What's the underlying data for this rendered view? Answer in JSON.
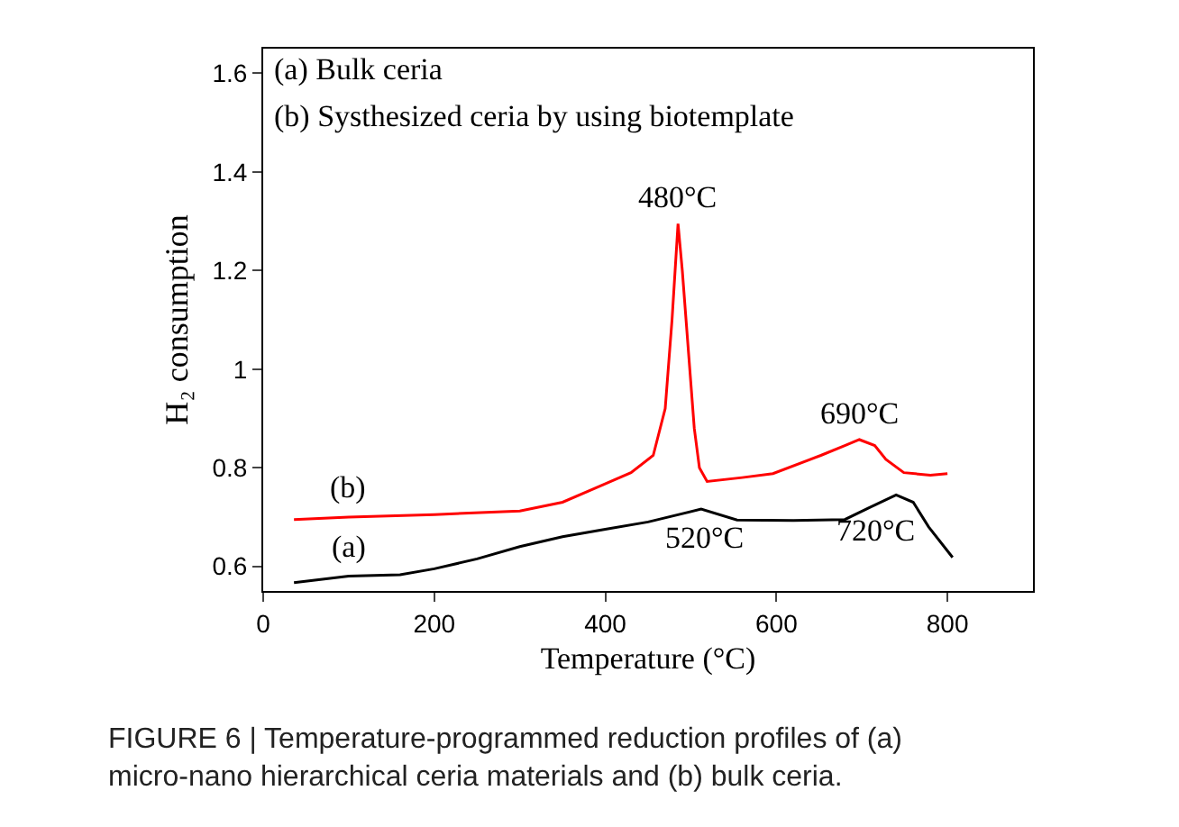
{
  "chart_data": {
    "type": "line",
    "xlabel": "Temperature (°C)",
    "ylabel": "H₂ consumption",
    "xlim": [
      0,
      900
    ],
    "ylim": [
      0.55,
      1.65
    ],
    "xticks": [
      0,
      200,
      400,
      600,
      800
    ],
    "yticks": [
      0.6,
      0.8,
      1.0,
      1.2,
      1.4,
      1.6
    ],
    "grid": false,
    "legend": false,
    "marker": "none",
    "line_style": "solid",
    "series": [
      {
        "name": "(a)",
        "color": "#000000",
        "x": [
          36,
          100,
          160,
          200,
          250,
          300,
          350,
          400,
          450,
          512,
          554,
          620,
          680,
          710,
          740,
          760,
          778,
          806
        ],
        "values": [
          0.567,
          0.58,
          0.583,
          0.595,
          0.615,
          0.64,
          0.66,
          0.675,
          0.69,
          0.716,
          0.694,
          0.693,
          0.695,
          0.72,
          0.745,
          0.73,
          0.68,
          0.618
        ]
      },
      {
        "name": "(b)",
        "color": "#ff0000",
        "x": [
          36,
          100,
          200,
          300,
          350,
          390,
          430,
          456,
          470,
          478,
          485,
          490,
          498,
          504,
          510,
          519,
          560,
          596,
          652,
          680,
          697,
          715,
          728,
          749,
          780,
          800
        ],
        "values": [
          0.695,
          0.7,
          0.705,
          0.712,
          0.73,
          0.76,
          0.79,
          0.825,
          0.92,
          1.1,
          1.295,
          1.2,
          1.017,
          0.88,
          0.8,
          0.772,
          0.78,
          0.788,
          0.825,
          0.845,
          0.857,
          0.845,
          0.817,
          0.79,
          0.785,
          0.788
        ]
      }
    ],
    "annotations": [
      "(a) Bulk ceria",
      "(b) Systhesized ceria by using biotemplate",
      {
        "text": "480°C",
        "x": 485,
        "y": 1.295
      },
      {
        "text": "690°C",
        "x": 697,
        "y": 0.857
      },
      {
        "text": "520°C",
        "x": 520,
        "y": 0.714
      },
      {
        "text": "720°C",
        "x": 720,
        "y": 0.728
      },
      "FIGURE 6 | Temperature-programmed reduction profiles of (a) micro-nano hierarchical ceria materials and (b) bulk ceria."
    ]
  }
}
